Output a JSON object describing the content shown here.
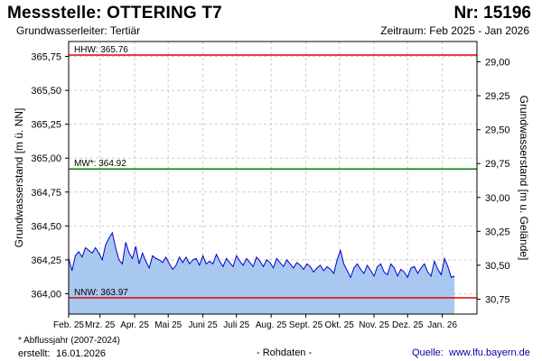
{
  "header": {
    "title": "Messstelle: OTTERING  T7",
    "nr": "Nr: 15196",
    "subtitle": "Grundwasserleiter: Tertiär",
    "zeitraum": "Zeitraum: Feb 2025 - Jan 2026"
  },
  "footer": {
    "note": "* Abflussjahr (2007-2024)",
    "created_label": "erstellt:",
    "created_date": "16.01.2026",
    "raw": "- Rohdaten -",
    "source_label": "Quelle:",
    "source": "www.lfu.bayern.de"
  },
  "colors": {
    "hhw": "#e00000",
    "mw": "#008000",
    "nnw": "#e00000",
    "line": "#0000cc",
    "area": "#a8c8f0",
    "grid": "#cccccc",
    "plot_border": "#000000"
  },
  "chart_data": {
    "type": "area",
    "ylabel_left": "Grundwasserstand [m ü. NN]",
    "ylabel_right": "Grundwasserstand [m u. Gelände]",
    "ylim": [
      363.85,
      365.86
    ],
    "yticks_left": [
      "364,00",
      "364,25",
      "364,50",
      "364,75",
      "365,00",
      "365,25",
      "365,50",
      "365,75"
    ],
    "yticks_left_values": [
      364.0,
      364.25,
      364.5,
      364.75,
      365.0,
      365.25,
      365.5,
      365.75
    ],
    "yticks_right": [
      "29,00",
      "29,25",
      "29,50",
      "29,75",
      "30,00",
      "30,25",
      "30,50",
      "30,75"
    ],
    "yticks_right_values": [
      365.71,
      365.46,
      365.21,
      364.96,
      364.71,
      364.46,
      364.21,
      363.96
    ],
    "xlim": [
      0,
      365
    ],
    "xticks": [
      "Feb. 25",
      "Mrz. 25",
      "Apr. 25",
      "Mai 25",
      "Juni 25",
      "Juli 25",
      "Aug. 25",
      "Sept. 25",
      "Okt. 25",
      "Nov. 25",
      "Dez. 25",
      "Jan. 26"
    ],
    "xticks_days": [
      0,
      28,
      59,
      89,
      120,
      150,
      181,
      212,
      242,
      273,
      303,
      334
    ],
    "grid": true,
    "reference_lines": [
      {
        "label": "HHW: 365.76",
        "value": 365.76,
        "color_key": "hhw"
      },
      {
        "label": "MW*: 364.92",
        "value": 364.92,
        "color_key": "mw"
      },
      {
        "label": "NNW: 363.97",
        "value": 363.97,
        "color_key": "nnw"
      }
    ],
    "series": [
      {
        "x": [
          0,
          3,
          6,
          9,
          12,
          15,
          18,
          21,
          24,
          27,
          30,
          33,
          36,
          39,
          42,
          45,
          48,
          51,
          54,
          57,
          60,
          63,
          66,
          69,
          72,
          75,
          78,
          81,
          84,
          87,
          90,
          93,
          96,
          99,
          102,
          105,
          108,
          111,
          114,
          117,
          120,
          123,
          126,
          129,
          132,
          135,
          138,
          141,
          144,
          147,
          150,
          153,
          156,
          159,
          162,
          165,
          168,
          171,
          174,
          177,
          180,
          183,
          186,
          189,
          192,
          195,
          198,
          201,
          204,
          207,
          210,
          213,
          216,
          219,
          222,
          225,
          228,
          231,
          234,
          237,
          240,
          243,
          246,
          249,
          252,
          255,
          258,
          261,
          264,
          267,
          270,
          273,
          276,
          279,
          282,
          285,
          288,
          291,
          294,
          297,
          300,
          303,
          306,
          309,
          312,
          315,
          318,
          321,
          324,
          327,
          330,
          333,
          336,
          339,
          342,
          345
        ],
        "y": [
          364.26,
          364.17,
          364.28,
          364.31,
          364.27,
          364.34,
          364.32,
          364.3,
          364.34,
          364.3,
          364.25,
          364.36,
          364.41,
          364.45,
          364.34,
          364.25,
          364.22,
          364.38,
          364.3,
          364.26,
          364.35,
          364.22,
          364.3,
          364.24,
          364.19,
          364.28,
          364.26,
          364.25,
          364.23,
          364.27,
          364.22,
          364.18,
          364.21,
          364.27,
          364.23,
          364.27,
          364.22,
          364.25,
          364.26,
          364.21,
          364.28,
          364.22,
          364.24,
          364.22,
          364.29,
          364.24,
          364.2,
          364.26,
          364.23,
          364.2,
          364.28,
          364.24,
          364.21,
          364.26,
          364.23,
          364.2,
          364.27,
          364.24,
          364.2,
          364.25,
          364.23,
          364.19,
          364.26,
          364.23,
          364.2,
          364.25,
          364.22,
          364.19,
          364.23,
          364.21,
          364.18,
          364.22,
          364.2,
          364.16,
          364.19,
          364.21,
          364.17,
          364.2,
          364.18,
          364.15,
          364.25,
          364.32,
          364.22,
          364.17,
          364.12,
          364.19,
          364.22,
          364.18,
          364.15,
          364.21,
          364.17,
          364.13,
          364.2,
          364.22,
          364.16,
          364.14,
          364.22,
          364.19,
          364.13,
          364.18,
          364.16,
          364.12,
          364.19,
          364.2,
          364.15,
          364.19,
          364.22,
          364.16,
          364.13,
          364.24,
          364.18,
          364.14,
          364.26,
          364.2,
          364.12,
          364.13
        ]
      }
    ]
  }
}
